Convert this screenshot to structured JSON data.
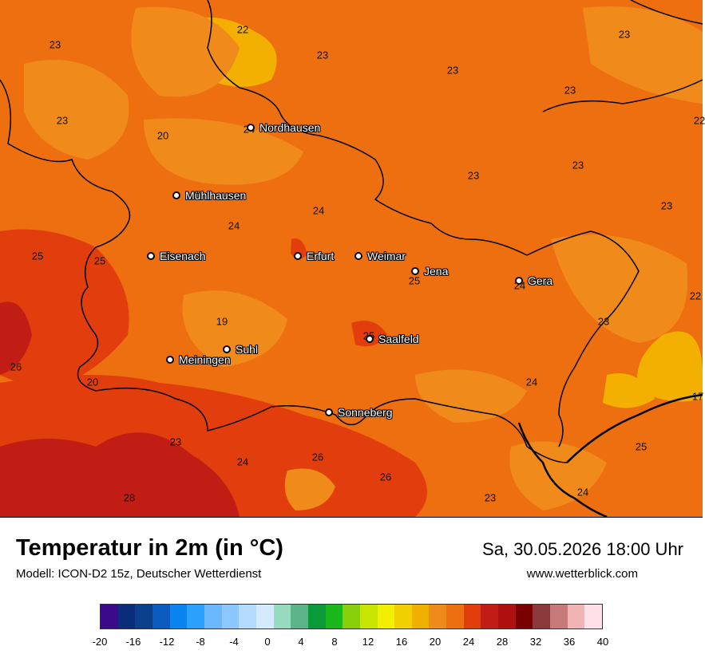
{
  "map": {
    "colors": {
      "base": "#ee6f10",
      "warm": "#e23d0c",
      "hot": "#c21d14",
      "cool": "#f08a1a",
      "cooler": "#f4b000",
      "border": "#000000"
    },
    "values": [
      {
        "v": "22"
      },
      {
        "v": "23"
      },
      {
        "v": "23"
      },
      {
        "v": "23"
      },
      {
        "v": "23"
      },
      {
        "v": "23"
      },
      {
        "v": "20"
      },
      {
        "v": "24"
      },
      {
        "v": "23"
      },
      {
        "v": "22"
      },
      {
        "v": "23"
      },
      {
        "v": "24"
      },
      {
        "v": "24"
      },
      {
        "v": "23"
      },
      {
        "v": "25"
      },
      {
        "v": "25"
      },
      {
        "v": "25"
      },
      {
        "v": "24"
      },
      {
        "v": "22"
      },
      {
        "v": "19"
      },
      {
        "v": "25"
      },
      {
        "v": "23"
      },
      {
        "v": "26"
      },
      {
        "v": "20"
      },
      {
        "v": "24"
      },
      {
        "v": "17"
      },
      {
        "v": "23"
      },
      {
        "v": "24"
      },
      {
        "v": "26"
      },
      {
        "v": "26"
      },
      {
        "v": "25"
      },
      {
        "v": "24"
      },
      {
        "v": "28"
      },
      {
        "v": "23"
      },
      {
        "v": "23"
      }
    ],
    "cities": [
      {
        "name": "Nordhausen"
      },
      {
        "name": "Mühlhausen"
      },
      {
        "name": "Eisenach"
      },
      {
        "name": "Erfurt"
      },
      {
        "name": "Weimar"
      },
      {
        "name": "Jena"
      },
      {
        "name": "Gera"
      },
      {
        "name": "Saalfeld"
      },
      {
        "name": "Suhl"
      },
      {
        "name": "Meiningen"
      },
      {
        "name": "Sonneberg"
      }
    ]
  },
  "footer": {
    "title": "Temperatur in 2m (in °C)",
    "model": "Modell: ICON-D2 15z, Deutscher Wetterdienst",
    "datetime": "Sa, 30.05.2026 18:00 Uhr",
    "website": "www.wetterblick.com"
  },
  "legend": {
    "colors": [
      "#3a0a8a",
      "#0a2c7a",
      "#0a3f8c",
      "#0a5cc0",
      "#0a84f0",
      "#2aa0ff",
      "#6bb8ff",
      "#8cc8ff",
      "#b4dcff",
      "#d4eaff",
      "#98dcc0",
      "#5cb48a",
      "#0a9a3a",
      "#1ab81a",
      "#8ad00a",
      "#c8e600",
      "#f0f000",
      "#f0d000",
      "#f0b000",
      "#f08a1a",
      "#ee6f10",
      "#e23d0c",
      "#c21d14",
      "#b01010",
      "#7a0000",
      "#8a3a3a",
      "#c87a7a",
      "#f0b4b4",
      "#ffe0e8"
    ],
    "ticks": [
      "-20",
      "-16",
      "-12",
      "-8",
      "-4",
      "0",
      "4",
      "8",
      "12",
      "16",
      "20",
      "24",
      "28",
      "32",
      "36",
      "40"
    ]
  }
}
